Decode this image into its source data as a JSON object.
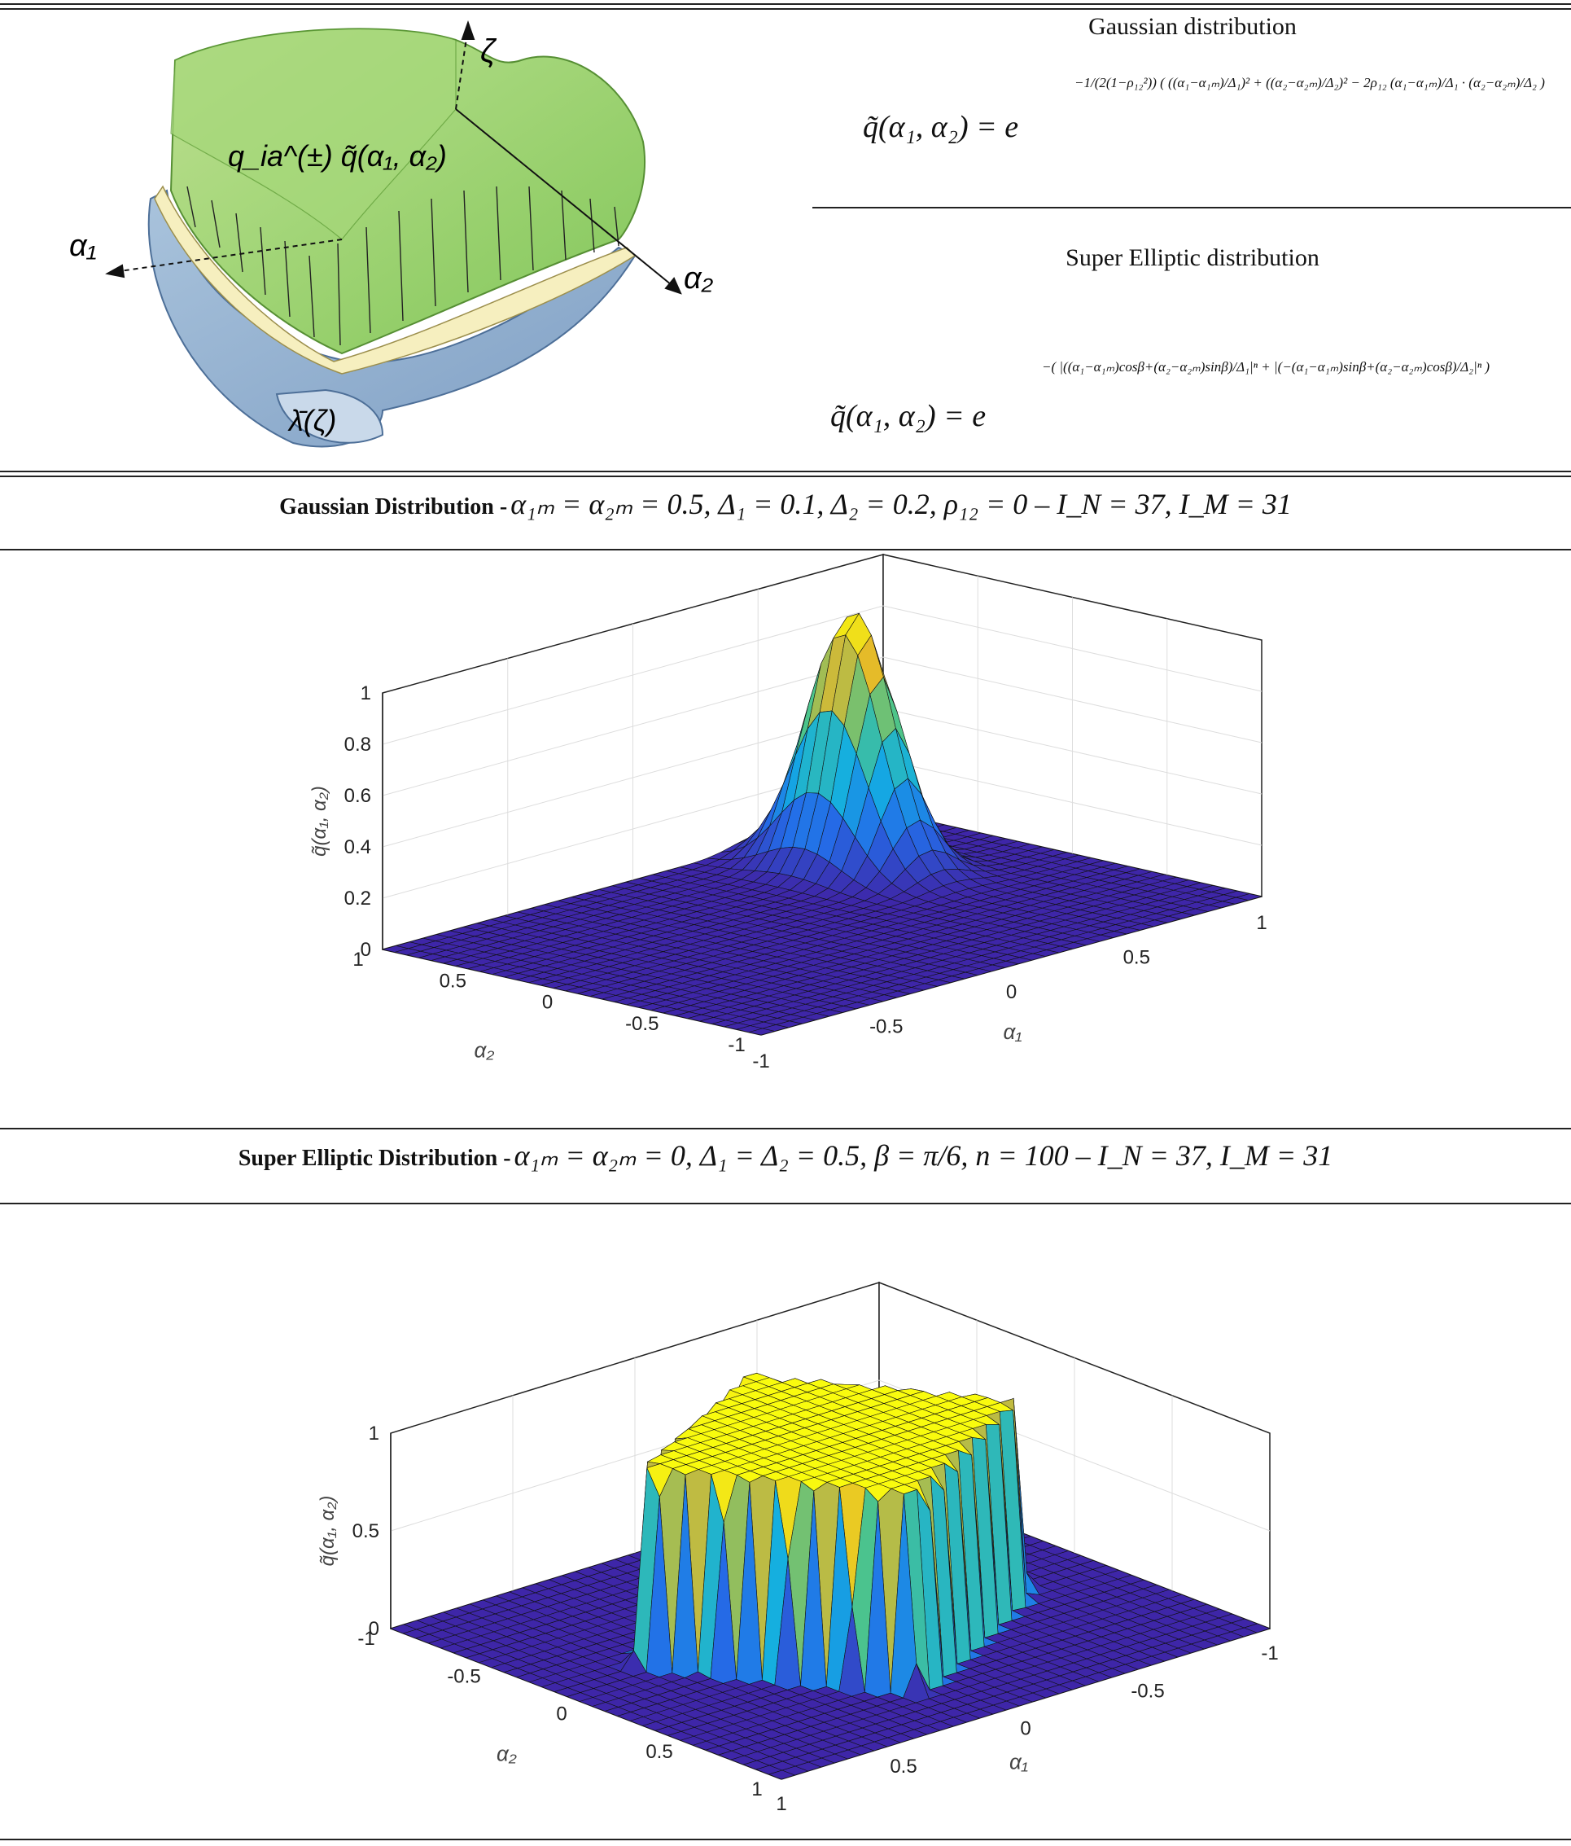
{
  "schematic": {
    "zeta_label": "ζ",
    "alpha1_label": "α₁",
    "alpha2_label": "α₂",
    "load_label": "q_ia^(±) q̃(α₁, α₂)",
    "lambda_label": "λ̄(ζ)"
  },
  "formulas": {
    "gaussian_title": "Gaussian distribution",
    "gaussian_lhs": "q̃(α₁, α₂) = e",
    "gaussian_exponent": "−1/(2(1−ρ₁₂²)) ( ((α₁−α₁ₘ)/Δ₁)² + ((α₂−α₂ₘ)/Δ₂)² − 2ρ₁₂ (α₁−α₁ₘ)/Δ₁ · (α₂−α₂ₘ)/Δ₂ )",
    "superelliptic_title": "Super Elliptic distribution",
    "superelliptic_lhs": "q̃(α₁, α₂) = e",
    "superelliptic_exponent": "−( |((α₁−α₁ₘ)cosβ+(α₂−α₂ₘ)sinβ)/Δ₁|ⁿ + |(−(α₁−α₁ₘ)sinβ+(α₂−α₂ₘ)cosβ)/Δ₂|ⁿ )"
  },
  "captions": {
    "gaussian_bold": "Gaussian Distribution -",
    "gaussian_params": "α₁ₘ = α₂ₘ = 0.5,   Δ₁ = 0.1,   Δ₂ = 0.2,   ρ₁₂ = 0   –   I_N = 37,   I_M = 31",
    "superelliptic_bold": "Super Elliptic Distribution -",
    "superelliptic_params": "α₁ₘ = α₂ₘ = 0,   Δ₁ = Δ₂ = 0.5,   β = π/6,   n = 100   –   I_N = 37,   I_M = 31"
  },
  "chart_data": [
    {
      "type": "surface",
      "distribution": "gaussian",
      "params": {
        "alpha1m": 0.5,
        "alpha2m": 0.5,
        "delta1": 0.1,
        "delta2": 0.2,
        "rho12": 0,
        "IN": 37,
        "IM": 31
      },
      "xlabel": "α₁",
      "ylabel": "α₂",
      "zlabel": "q̃(α₁, α₂)",
      "xlim": [
        -1,
        1
      ],
      "ylim": [
        -1,
        1
      ],
      "zlim": [
        0,
        1
      ],
      "x_ticks": [
        "-1",
        "-0.5",
        "0",
        "0.5",
        "1"
      ],
      "y_ticks": [
        "-1",
        "-0.5",
        "0",
        "0.5",
        "1"
      ],
      "z_ticks": [
        "0",
        "0.2",
        "0.4",
        "0.6",
        "0.8",
        "1"
      ],
      "grid": true,
      "colormap": "parula"
    },
    {
      "type": "surface",
      "distribution": "super-elliptic",
      "params": {
        "alpha1m": 0,
        "alpha2m": 0,
        "delta1": 0.5,
        "delta2": 0.5,
        "beta": "π/6",
        "n": 100,
        "IN": 37,
        "IM": 31
      },
      "xlabel": "α₁",
      "ylabel": "α₂",
      "zlabel": "q̃(α₁, α₂)",
      "xlim": [
        -1,
        1
      ],
      "ylim": [
        -1,
        1
      ],
      "zlim": [
        0,
        1
      ],
      "x_ticks": [
        "-1",
        "-0.5",
        "0",
        "0.5",
        "1"
      ],
      "y_ticks": [
        "-1",
        "-0.5",
        "0",
        "0.5",
        "1"
      ],
      "z_ticks": [
        "0",
        "0.5",
        "1"
      ],
      "grid": true,
      "colormap": "parula"
    }
  ]
}
